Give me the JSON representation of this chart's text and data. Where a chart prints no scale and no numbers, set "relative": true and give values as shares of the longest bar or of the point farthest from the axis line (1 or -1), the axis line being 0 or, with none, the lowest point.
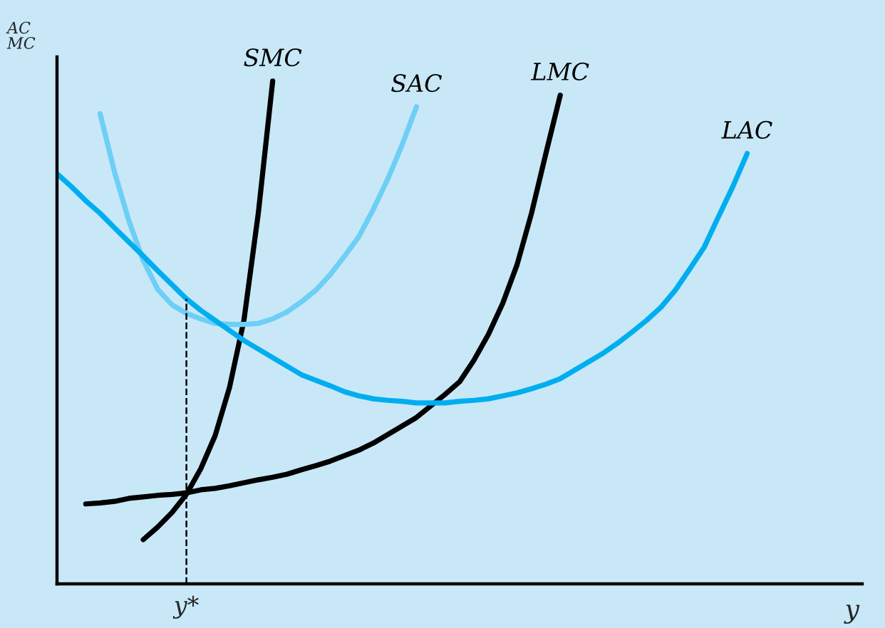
{
  "chart_data": {
    "type": "line",
    "relative": true,
    "ylabel": "AC\nMC",
    "xlabel": "y",
    "annotations": [
      "y*"
    ],
    "tick_labels": false,
    "legend": false,
    "marker": "none",
    "line_style": "solid",
    "categories": [
      null,
      null,
      null,
      null,
      null,
      null,
      null,
      null,
      null,
      null,
      null,
      null,
      null,
      null,
      null,
      null,
      null,
      null,
      null,
      null,
      null,
      null,
      null,
      null,
      null,
      null,
      null,
      null,
      null,
      null,
      null,
      null,
      null,
      null,
      null,
      null,
      null,
      null,
      null,
      null,
      null,
      null,
      null,
      null,
      null,
      null,
      null,
      null,
      null,
      null,
      null,
      null,
      null,
      null,
      null,
      null,
      null
    ],
    "series": [
      {
        "name": "SMC",
        "color": "#000000",
        "values": [
          null,
          null,
          null,
          null,
          null,
          null,
          0.088,
          0.113,
          0.142,
          0.178,
          0.229,
          0.295,
          0.391,
          0.524,
          0.737,
          1,
          null,
          null,
          null,
          null,
          null,
          null,
          null,
          null,
          null,
          null,
          null,
          null,
          null,
          null,
          null,
          null,
          null,
          null,
          null,
          null,
          null,
          null,
          null,
          null,
          null,
          null,
          null,
          null,
          null,
          null,
          null,
          null,
          null,
          null,
          null,
          null,
          null,
          null,
          null,
          null,
          null
        ]
      },
      {
        "name": "SAC",
        "color": "#6dcff6",
        "values": [
          null,
          null,
          null,
          0.935,
          0.819,
          0.722,
          0.643,
          0.586,
          0.555,
          0.538,
          0.527,
          0.518,
          0.516,
          0.516,
          0.518,
          0.527,
          0.541,
          0.561,
          0.584,
          0.615,
          0.652,
          0.691,
          0.745,
          0.805,
          0.873,
          0.949,
          null,
          null,
          null,
          null,
          null,
          null,
          null,
          null,
          null,
          null,
          null,
          null,
          null,
          null,
          null,
          null,
          null,
          null,
          null,
          null,
          null,
          null,
          null,
          null,
          null,
          null,
          null,
          null,
          null,
          null,
          null
        ]
      },
      {
        "name": "LMC",
        "color": "#000000",
        "values": [
          null,
          null,
          0.159,
          0.161,
          0.164,
          0.17,
          0.173,
          0.176,
          0.178,
          0.181,
          0.187,
          0.19,
          0.195,
          0.201,
          0.207,
          0.212,
          0.218,
          0.227,
          0.235,
          0.244,
          0.255,
          0.266,
          0.28,
          0.297,
          0.314,
          0.331,
          0.354,
          0.377,
          0.402,
          0.445,
          0.496,
          0.558,
          0.635,
          0.737,
          0.856,
          0.972,
          null,
          null,
          null,
          null,
          null,
          null,
          null,
          null,
          null,
          null,
          null,
          null,
          null,
          null,
          null,
          null,
          null,
          null,
          null,
          null,
          null
        ]
      },
      {
        "name": "LAC",
        "color": "#00aeef",
        "values": [
          0.816,
          0.79,
          0.762,
          0.737,
          0.708,
          0.68,
          0.652,
          0.623,
          0.595,
          0.567,
          0.544,
          0.524,
          0.504,
          0.484,
          0.467,
          0.45,
          0.433,
          0.416,
          0.405,
          0.394,
          0.382,
          0.374,
          0.368,
          0.365,
          0.363,
          0.36,
          0.36,
          0.36,
          0.363,
          0.365,
          0.368,
          0.374,
          0.38,
          0.388,
          0.397,
          0.408,
          0.425,
          0.442,
          0.459,
          0.479,
          0.501,
          0.524,
          0.55,
          0.584,
          0.626,
          0.669,
          0.73,
          0.79,
          0.856,
          null,
          null,
          null,
          null,
          null,
          null,
          null,
          null
        ]
      }
    ]
  }
}
